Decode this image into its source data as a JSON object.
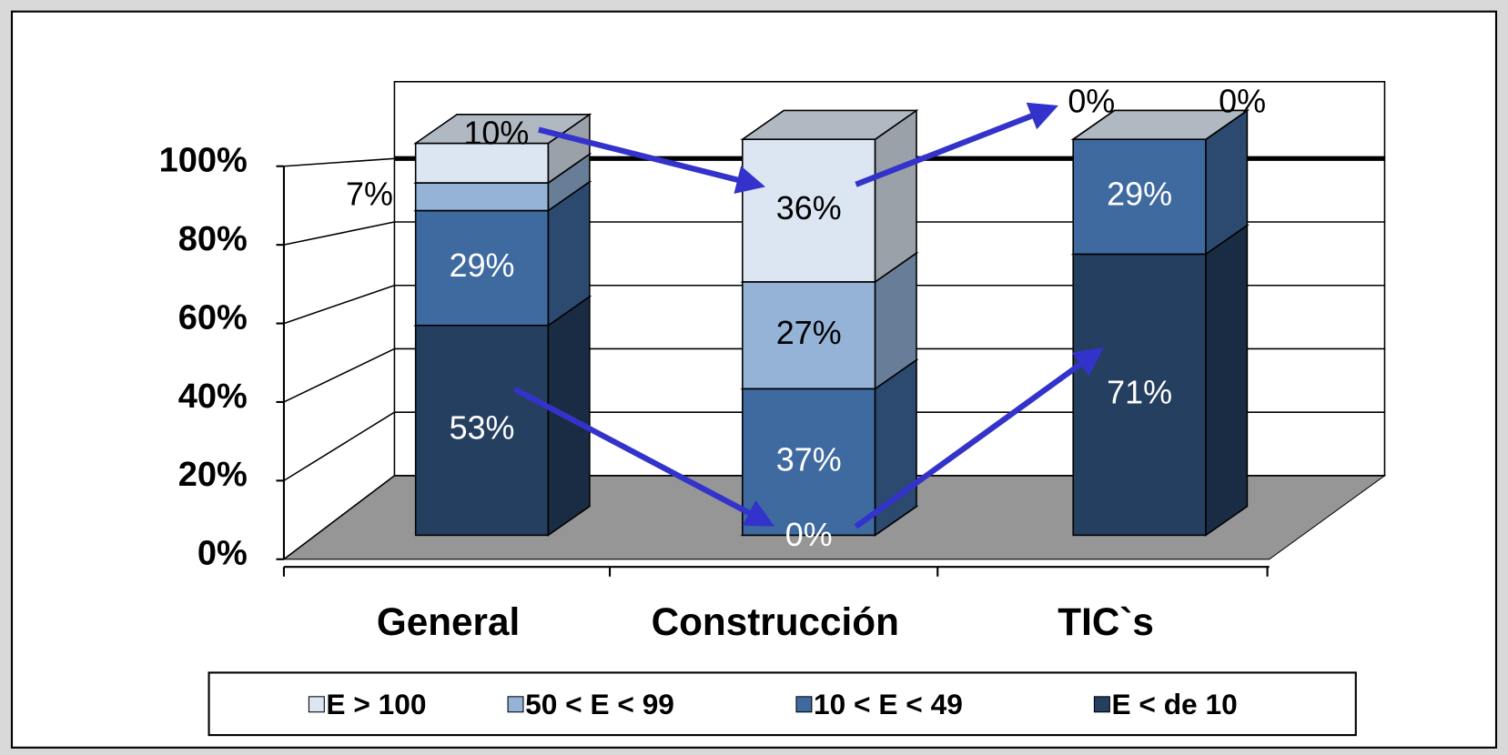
{
  "chart_data": {
    "type": "bar3d_stacked",
    "categories": [
      "General",
      "Construcción",
      "TIC`s"
    ],
    "series": [
      {
        "name": "E > 100",
        "color": "#dce6f2",
        "values": [
          10,
          36,
          0
        ],
        "value_labels": [
          "10%",
          "36%",
          "0%"
        ]
      },
      {
        "name": "50 < E < 99",
        "color": "#95b3d7",
        "values": [
          7,
          27,
          0
        ],
        "value_labels": [
          "7%",
          "27%",
          "0%"
        ]
      },
      {
        "name": "10 < E  < 49",
        "color": "#3f6aa0",
        "values": [
          29,
          37,
          29
        ],
        "value_labels": [
          "29%",
          "37%",
          "29%"
        ]
      },
      {
        "name": "E < de 10",
        "color": "#253f60",
        "values": [
          53,
          0,
          71
        ],
        "value_labels": [
          "53%",
          "0%",
          "71%"
        ]
      }
    ],
    "ylim": [
      0,
      100
    ],
    "yticks": [
      {
        "value": 0,
        "label": "0%"
      },
      {
        "value": 20,
        "label": "20%"
      },
      {
        "value": 40,
        "label": "40%"
      },
      {
        "value": 60,
        "label": "60%"
      },
      {
        "value": 80,
        "label": "80%"
      },
      {
        "value": 100,
        "label": "100%"
      }
    ],
    "grid": true,
    "legend": "bottom"
  }
}
